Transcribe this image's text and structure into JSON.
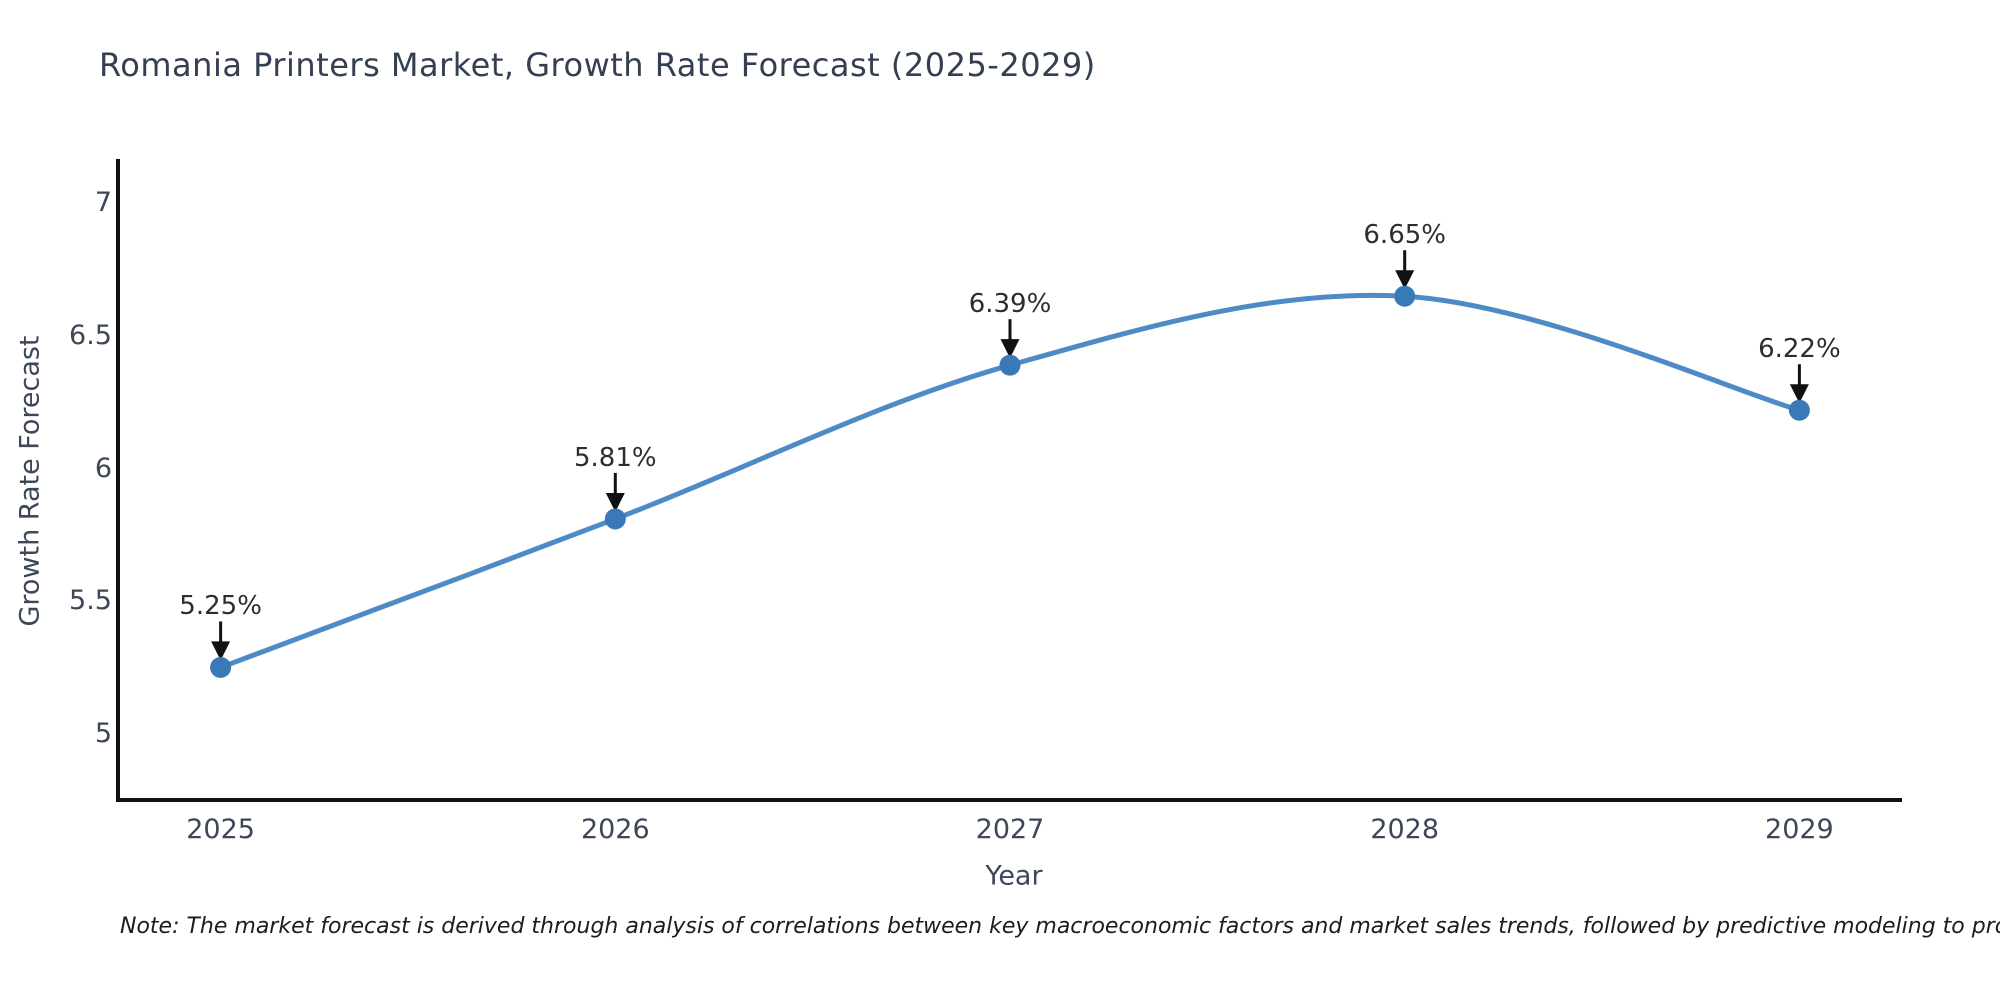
{
  "title": "Romania Printers Market, Growth Rate Forecast (2025-2029)",
  "note": "Note: The market forecast is derived through analysis of correlations between key macroeconomic factors and market sales trends, followed by predictive modeling to project future sales",
  "chart_data": {
    "type": "line",
    "line_shape": "spline",
    "title": "Romania Printers Market, Growth Rate Forecast (2025-2029)",
    "xlabel": "Year",
    "ylabel": "Growth Rate Forecast",
    "x": [
      2025,
      2026,
      2027,
      2028,
      2029
    ],
    "series": [
      {
        "name": "Growth Rate Forecast",
        "values": [
          5.25,
          5.81,
          6.39,
          6.65,
          6.22
        ]
      }
    ],
    "point_labels": [
      "5.25%",
      "5.81%",
      "6.39%",
      "6.65%",
      "6.22%"
    ],
    "xticks": [
      "2025",
      "2026",
      "2027",
      "2028",
      "2029"
    ],
    "yticks": [
      5,
      5.5,
      6,
      6.5,
      7
    ],
    "xlim": [
      2024.74,
      2029.26
    ],
    "ylim": [
      4.75,
      7.16
    ],
    "grid": false,
    "legend": false,
    "markers": true,
    "annotation_arrows": true,
    "colors": {
      "line": "#4e8ac5",
      "marker": "#3a79b8",
      "axis_line": "#111111",
      "arrow": "#111111",
      "title_text": "#353f52",
      "tick_text": "#3d4758",
      "axis_title_text": "#3d4758",
      "point_label_text": "#2d2d2d",
      "note_text": "#1c1c1c",
      "background": "#ffffff"
    }
  }
}
